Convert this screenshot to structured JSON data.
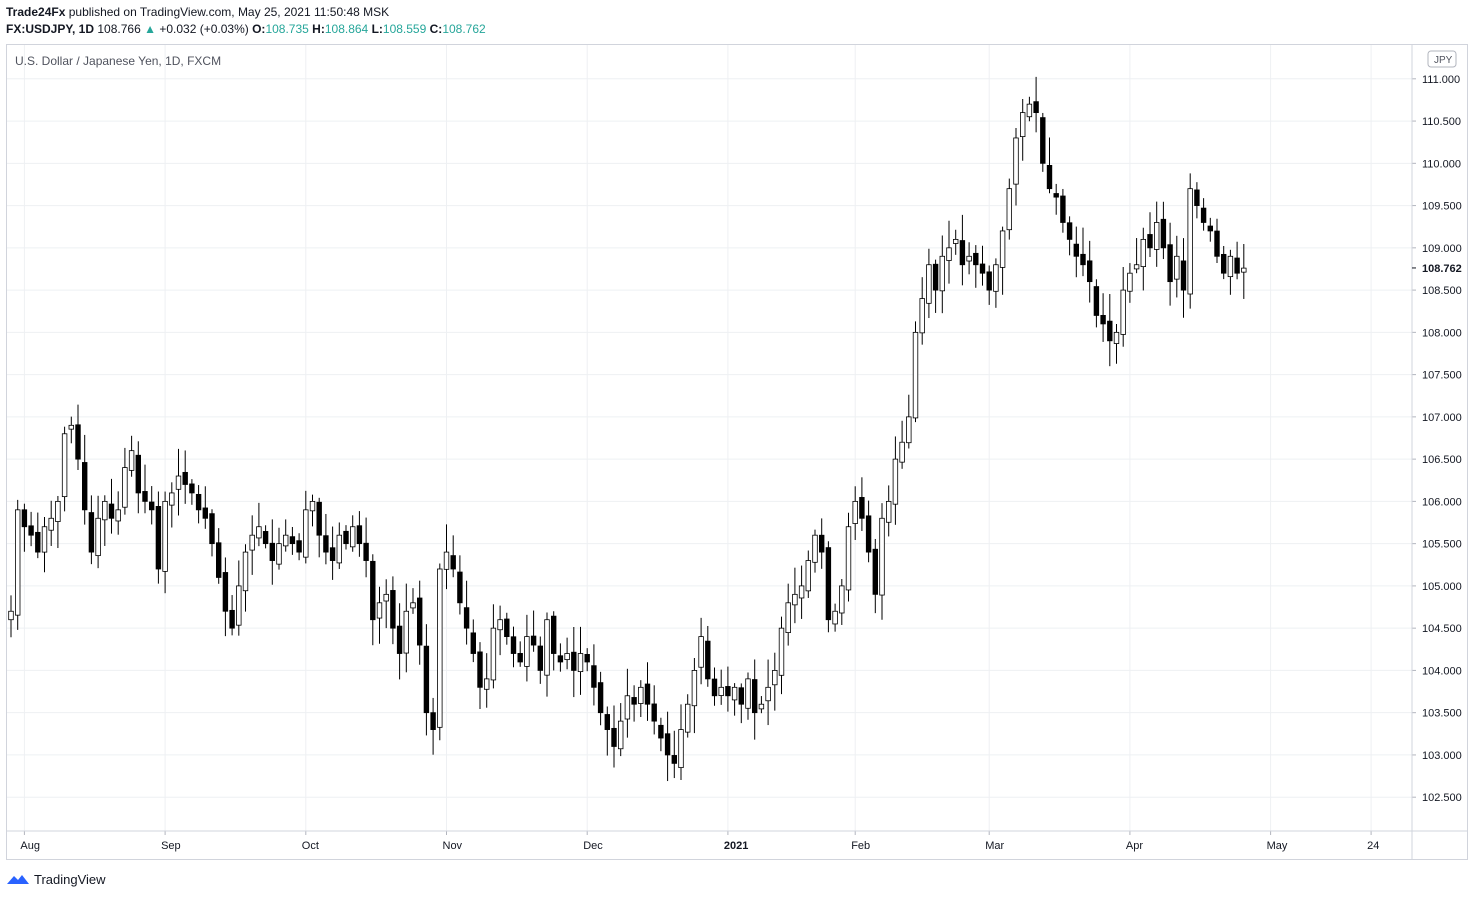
{
  "header": {
    "author": "Trade24Fx",
    "published_text": "published on TradingView.com, May 25, 2021 11:50:48 MSK",
    "symbol": "FX:USDJPY, 1D",
    "last": "108.766",
    "change": "+0.032 (+0.03%)",
    "open_label": "O:",
    "open": "108.735",
    "high_label": "H:",
    "high": "108.864",
    "low_label": "L:",
    "low": "108.559",
    "close_label": "C:",
    "close": "108.762"
  },
  "footer": {
    "brand": "TradingView",
    "logo_icon": "tradingview-logo-icon"
  },
  "colors": {
    "up": "#ffffff",
    "down": "#000000",
    "wick": "#000000",
    "accent": "#26a69a",
    "grid": "#eef0f3"
  },
  "chart_data": {
    "type": "candlestick",
    "title": "U.S. Dollar / Japanese Yen, 1D, FXCM",
    "currency_badge": "JPY",
    "last_price_label": "108.762",
    "ylim": [
      102.1,
      111.4
    ],
    "y_ticks": [
      "102.500",
      "103.000",
      "103.500",
      "104.000",
      "104.500",
      "105.000",
      "105.500",
      "106.000",
      "106.500",
      "107.000",
      "107.500",
      "108.000",
      "108.500",
      "109.000",
      "109.500",
      "110.000",
      "110.500",
      "111.000"
    ],
    "x_ticks": [
      {
        "label": "Aug",
        "index": 2,
        "bold": false
      },
      {
        "label": "Sep",
        "index": 23,
        "bold": false
      },
      {
        "label": "Oct",
        "index": 44,
        "bold": false
      },
      {
        "label": "Nov",
        "index": 65,
        "bold": false
      },
      {
        "label": "Dec",
        "index": 86,
        "bold": false
      },
      {
        "label": "2021",
        "index": 107,
        "bold": true
      },
      {
        "label": "Feb",
        "index": 126,
        "bold": false
      },
      {
        "label": "Mar",
        "index": 146,
        "bold": false
      },
      {
        "label": "Apr",
        "index": 167,
        "bold": false
      },
      {
        "label": "May",
        "index": 188,
        "bold": false
      },
      {
        "label": "24",
        "index": 203,
        "bold": false
      }
    ],
    "x_slots": 209,
    "closes": [
      104.7,
      105.9,
      105.7,
      105.6,
      105.4,
      105.7,
      105.8,
      106.0,
      106.8,
      106.9,
      106.5,
      105.9,
      105.4,
      105.8,
      106.0,
      105.8,
      105.9,
      106.4,
      106.6,
      106.1,
      106.0,
      105.9,
      105.2,
      106.0,
      106.1,
      106.3,
      106.2,
      106.1,
      105.9,
      105.8,
      105.5,
      105.1,
      104.7,
      104.5,
      105.0,
      105.4,
      105.6,
      105.7,
      105.5,
      105.3,
      105.5,
      105.6,
      105.5,
      105.4,
      105.9,
      106.0,
      105.6,
      105.4,
      105.3,
      105.6,
      105.5,
      105.7,
      105.5,
      105.3,
      104.6,
      104.8,
      104.9,
      104.5,
      104.2,
      104.7,
      104.8,
      104.3,
      103.5,
      103.3,
      105.2,
      105.4,
      105.2,
      104.8,
      104.5,
      104.2,
      103.8,
      103.9,
      104.5,
      104.6,
      104.4,
      104.2,
      104.1,
      104.4,
      104.3,
      104.0,
      104.6,
      104.2,
      104.1,
      104.2,
      104.0,
      104.2,
      104.1,
      103.8,
      103.5,
      103.3,
      103.1,
      103.4,
      103.7,
      103.6,
      103.8,
      103.6,
      103.4,
      103.2,
      103.0,
      102.9,
      103.3,
      103.6,
      104.0,
      104.4,
      103.9,
      103.7,
      103.8,
      103.7,
      103.8,
      103.6,
      103.9,
      103.5,
      103.6,
      103.8,
      104.0,
      104.5,
      104.8,
      104.9,
      105.0,
      105.3,
      105.6,
      105.4,
      104.6,
      104.7,
      105.0,
      105.7,
      106.0,
      105.8,
      105.4,
      104.9,
      105.8,
      106.0,
      106.5,
      106.7,
      107.0,
      108.0,
      108.4,
      108.8,
      108.5,
      108.9,
      109.0,
      109.1,
      108.8,
      108.9,
      108.8,
      108.7,
      108.5,
      108.8,
      109.2,
      109.7,
      110.3,
      110.6,
      110.7,
      110.6,
      110.0,
      109.7,
      109.6,
      109.3,
      109.1,
      108.9,
      108.8,
      108.6,
      108.2,
      108.1,
      107.9,
      108.0,
      108.5,
      108.7,
      108.8,
      109.1,
      109.0,
      109.3,
      109.0,
      108.6,
      108.9,
      108.5,
      109.7,
      109.5,
      109.3,
      109.2,
      108.9,
      108.7,
      108.9,
      108.7,
      108.76
    ],
    "x_offset": 0
  }
}
